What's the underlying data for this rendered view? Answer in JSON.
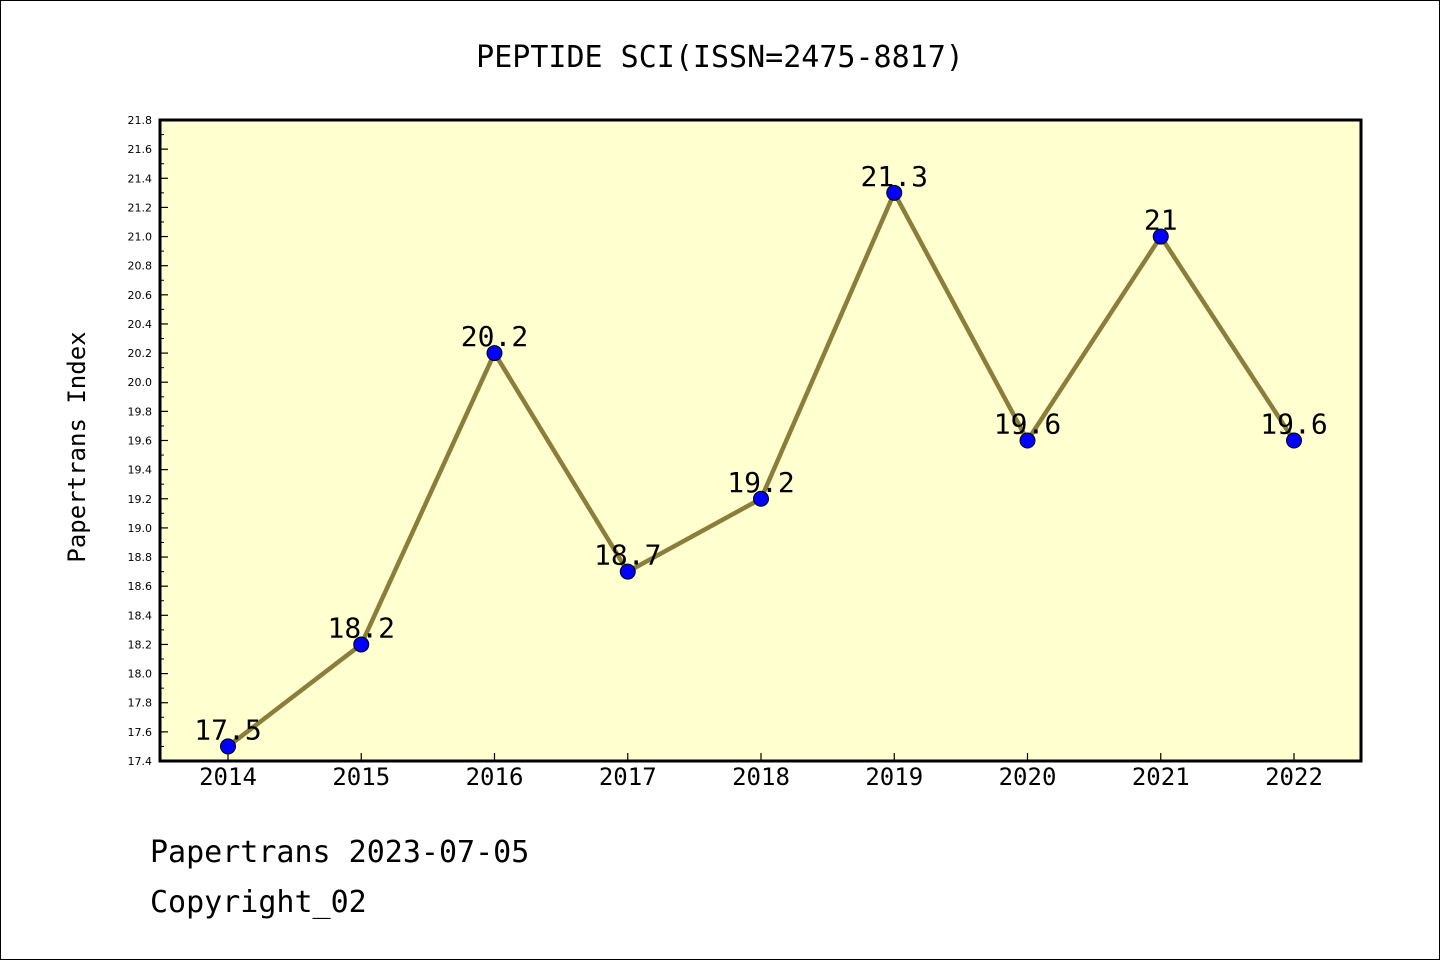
{
  "chart_data": {
    "type": "line",
    "title": "PEPTIDE SCI(ISSN=2475-8817)",
    "xlabel": "",
    "ylabel": "Papertrans Index",
    "categories": [
      "2014",
      "2015",
      "2016",
      "2017",
      "2018",
      "2019",
      "2020",
      "2021",
      "2022"
    ],
    "series": [
      {
        "values": [
          17.5,
          18.2,
          20.2,
          18.7,
          19.2,
          21.3,
          19.6,
          21.0,
          19.6
        ],
        "data_labels": [
          "17.5",
          "18.2",
          "20.2",
          "18.7",
          "19.2",
          "21.3",
          "19.6",
          "21",
          "19.6"
        ]
      }
    ],
    "ylim": [
      17.4,
      21.8
    ],
    "yticks": [
      "17.4",
      "17.6",
      "17.8",
      "18.0",
      "18.2",
      "18.4",
      "18.6",
      "18.8",
      "19.0",
      "19.2",
      "19.4",
      "19.6",
      "19.8",
      "20.0",
      "20.2",
      "20.4",
      "20.6",
      "20.8",
      "21.0",
      "21.2",
      "21.4",
      "21.6",
      "21.8"
    ],
    "grid": false,
    "legend": "none",
    "colors": {
      "plot_background": "#ffffd0",
      "line": "#8b7d3a",
      "marker": "#0000ff",
      "marker_edge": "#000000"
    }
  },
  "footer": {
    "source": "Papertrans 2023-07-05",
    "copyright": "Copyright_02"
  }
}
